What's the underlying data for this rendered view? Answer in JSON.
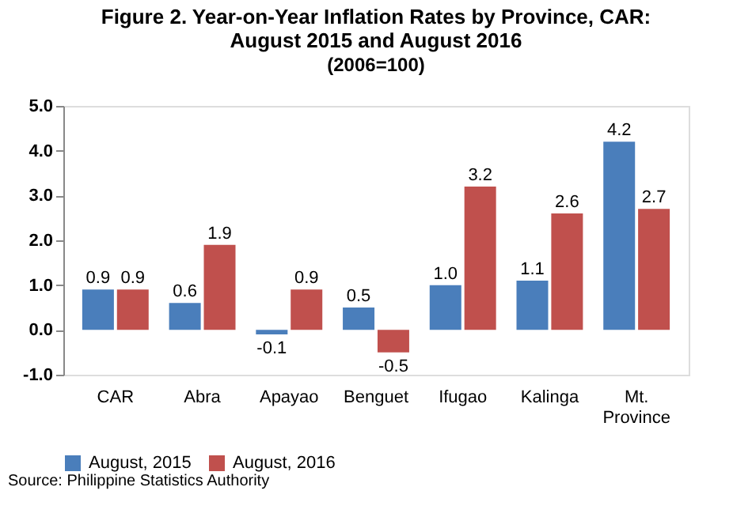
{
  "chart_data": {
    "type": "bar",
    "title": "Figure 2. Year-on-Year Inflation Rates by Province, CAR:\nAugust 2015 and August 2016",
    "subtitle": "(2006=100)",
    "categories": [
      "CAR",
      "Abra",
      "Apayao",
      "Benguet",
      "Ifugao",
      "Kalinga",
      "Mt. Province"
    ],
    "series": [
      {
        "name": "August, 2015",
        "color": "#4a7ebb",
        "values": [
          0.9,
          0.6,
          -0.1,
          0.5,
          1.0,
          1.1,
          4.2
        ],
        "value_labels": [
          "0.9",
          "0.6",
          "-0.1",
          "0.5",
          "1.0",
          "1.1",
          "4.2"
        ]
      },
      {
        "name": "August, 2016",
        "color": "#c0504d",
        "values": [
          0.9,
          1.9,
          0.9,
          -0.5,
          3.2,
          2.6,
          2.7
        ],
        "value_labels": [
          "0.9",
          "1.9",
          "0.9",
          "-0.5",
          "3.2",
          "2.6",
          "2.7"
        ]
      }
    ],
    "ylim": [
      -1,
      5
    ],
    "yticks": [
      {
        "value": -1,
        "label": "-1.0"
      },
      {
        "value": 0,
        "label": "0.0"
      },
      {
        "value": 1,
        "label": "1.0"
      },
      {
        "value": 2,
        "label": "2.0"
      },
      {
        "value": 3,
        "label": "3.0"
      },
      {
        "value": 4,
        "label": "4.0"
      },
      {
        "value": 5,
        "label": "5.0"
      }
    ],
    "grid": false,
    "legend": "bottom",
    "annotations": [
      "Source: Philippine Statistics Authority"
    ]
  }
}
